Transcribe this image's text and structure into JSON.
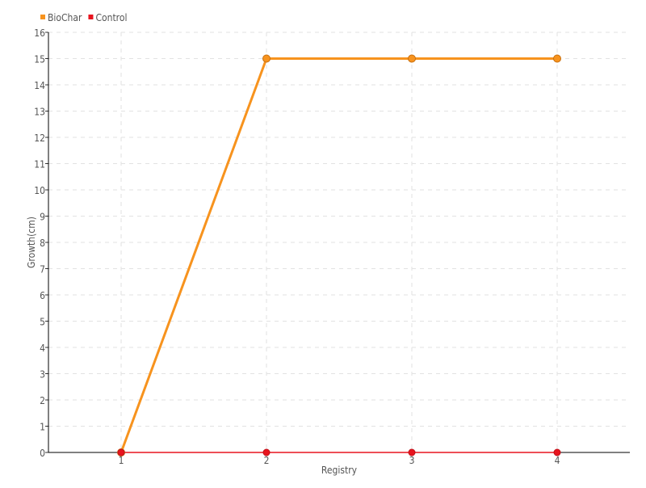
{
  "chart_data": {
    "type": "line",
    "title": "",
    "xlabel": "Registry",
    "ylabel": "Growth(cm)",
    "x": [
      1,
      2,
      3,
      4
    ],
    "xlim": [
      0.5,
      4.5
    ],
    "ylim": [
      0,
      16
    ],
    "yticks": [
      0,
      1,
      2,
      3,
      4,
      5,
      6,
      7,
      8,
      9,
      10,
      11,
      12,
      13,
      14,
      15,
      16
    ],
    "xticks": [
      1,
      2,
      3,
      4
    ],
    "grid": true,
    "legend_placement": "top-left",
    "series": [
      {
        "name": "BioChar",
        "values": [
          0,
          15,
          15,
          15
        ],
        "color": "#f7931e"
      },
      {
        "name": "Control",
        "values": [
          0,
          0,
          0,
          0
        ],
        "color": "#e8141e"
      }
    ]
  }
}
